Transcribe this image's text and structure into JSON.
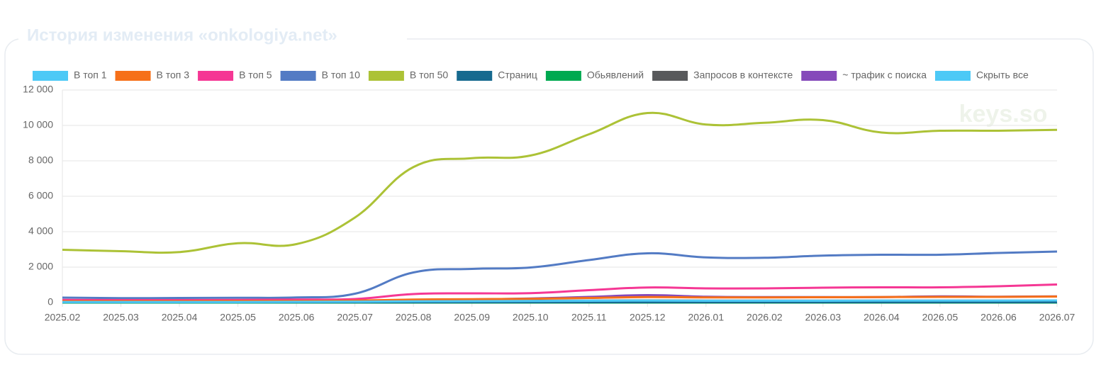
{
  "chart_data": {
    "type": "line",
    "title": "История изменения «onkologiya.net»",
    "watermark": "keys.so",
    "toggle_label": "Скрыть все",
    "toggle_color": "#4dc9f6",
    "categories": [
      "2025.02",
      "2025.03",
      "2025.04",
      "2025.05",
      "2025.06",
      "2025.07",
      "2025.08",
      "2025.09",
      "2025.10",
      "2025.11",
      "2025.12",
      "2026.01",
      "2026.02",
      "2026.03",
      "2026.04",
      "2026.05",
      "2026.06",
      "2026.07"
    ],
    "ylim": [
      0,
      12000
    ],
    "yticks": [
      0,
      {
        "value": 2000,
        "label": "2 000"
      },
      {
        "value": 4000,
        "label": "4 000"
      },
      {
        "value": 6000,
        "label": "6 000"
      },
      {
        "value": 8000,
        "label": "8 000"
      },
      {
        "value": 10000,
        "label": "10 000"
      },
      {
        "value": 12000,
        "label": "12 000"
      }
    ],
    "grid": true,
    "series": [
      {
        "name": "В топ 1",
        "color": "#4dc9f6",
        "values": [
          30,
          30,
          30,
          30,
          40,
          50,
          70,
          80,
          90,
          100,
          110,
          100,
          100,
          100,
          110,
          110,
          110,
          120
        ]
      },
      {
        "name": "В топ 3",
        "color": "#f67019",
        "values": [
          80,
          80,
          80,
          90,
          90,
          110,
          170,
          190,
          210,
          260,
          310,
          290,
          290,
          300,
          310,
          320,
          320,
          340
        ]
      },
      {
        "name": "В топ 5",
        "color": "#f53794",
        "values": [
          150,
          140,
          140,
          150,
          170,
          200,
          480,
          520,
          530,
          700,
          850,
          800,
          800,
          840,
          860,
          860,
          920,
          1020
        ]
      },
      {
        "name": "В топ 10",
        "color": "#537bc4",
        "values": [
          280,
          250,
          260,
          270,
          290,
          500,
          1700,
          1900,
          1980,
          2400,
          2780,
          2550,
          2530,
          2650,
          2700,
          2700,
          2800,
          2880
        ]
      },
      {
        "name": "В топ 50",
        "color": "#acc236",
        "values": [
          2980,
          2900,
          2850,
          3350,
          3300,
          4800,
          7650,
          8150,
          8300,
          9500,
          10700,
          10050,
          10150,
          10300,
          9600,
          9700,
          9700,
          9750
        ]
      },
      {
        "name": "Страниц",
        "color": "#166a8f",
        "values": [
          20,
          20,
          20,
          20,
          20,
          20,
          20,
          20,
          20,
          20,
          20,
          20,
          20,
          20,
          20,
          20,
          20,
          20
        ]
      },
      {
        "name": "Обьявлений",
        "color": "#00a950",
        "values": [
          0,
          0,
          0,
          0,
          0,
          0,
          0,
          0,
          0,
          0,
          0,
          0,
          0,
          0,
          0,
          0,
          0,
          0
        ]
      },
      {
        "name": "Запросов в контексте",
        "color": "#58595b",
        "values": [
          50,
          50,
          50,
          50,
          50,
          60,
          80,
          90,
          100,
          110,
          120,
          110,
          110,
          110,
          110,
          110,
          110,
          110
        ]
      },
      {
        "name": "~ трафик с поиска",
        "color": "#8549ba",
        "values": [
          70,
          70,
          70,
          70,
          70,
          90,
          150,
          180,
          230,
          320,
          420,
          330,
          310,
          310,
          310,
          350,
          330,
          350
        ]
      }
    ]
  }
}
